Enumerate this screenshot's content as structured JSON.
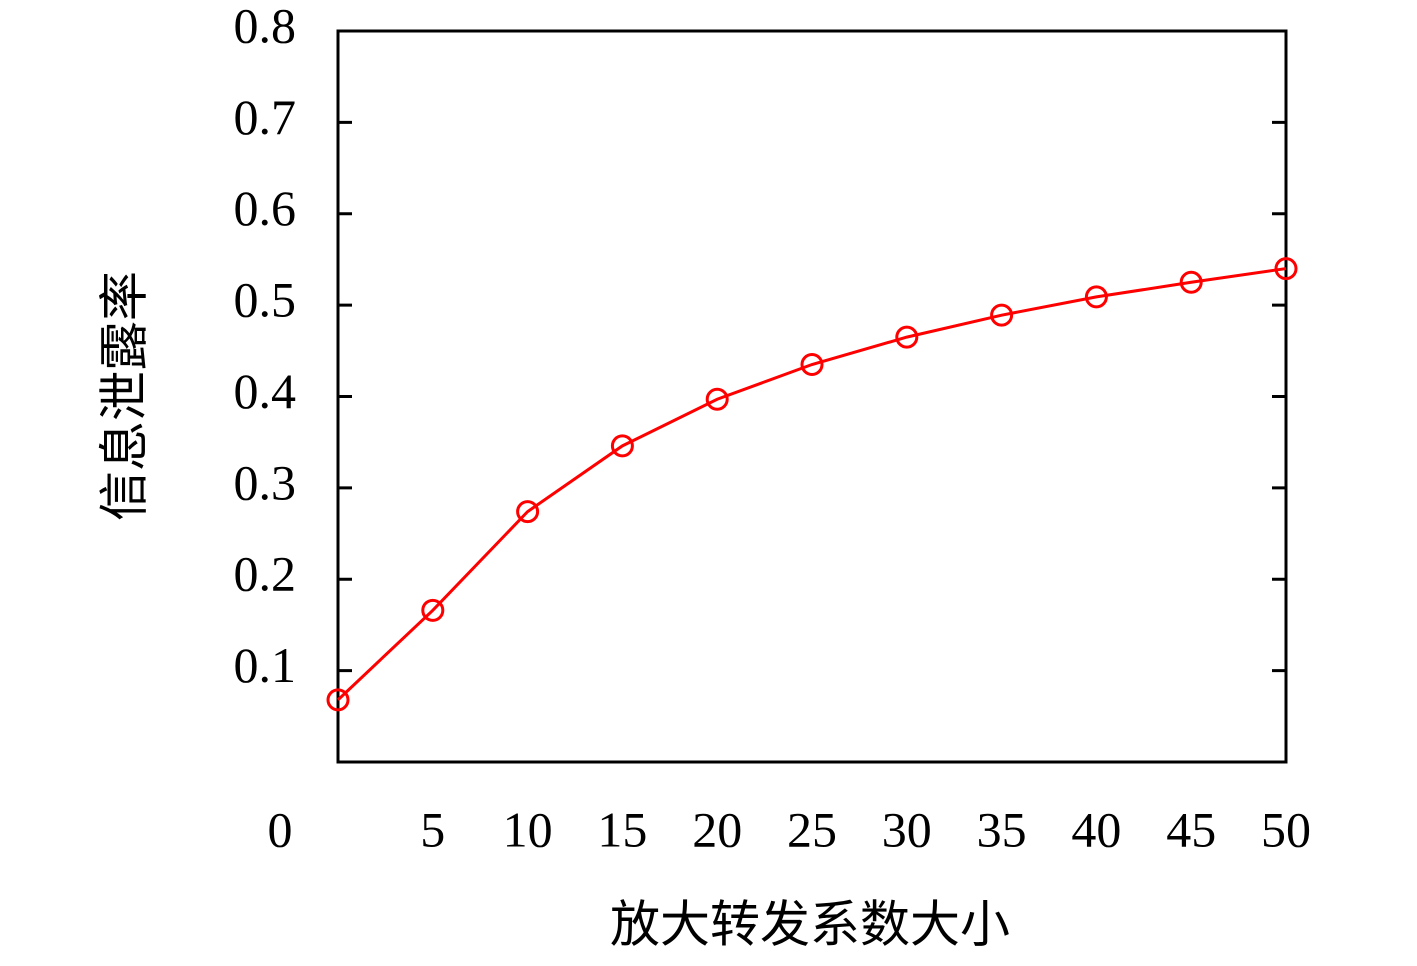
{
  "chart_data": {
    "type": "line",
    "x_label": "放大转发系数大小",
    "y_label": "信息泄露率",
    "x": [
      0,
      5,
      10,
      15,
      20,
      25,
      30,
      35,
      40,
      45,
      50
    ],
    "series": [
      {
        "name": "信息泄露率",
        "color": "#ff0000",
        "values": [
          0.068,
          0.166,
          0.274,
          0.346,
          0.397,
          0.435,
          0.465,
          0.489,
          0.509,
          0.525,
          0.54
        ]
      }
    ],
    "xlim": [
      0,
      50
    ],
    "xticks": [
      0,
      5,
      10,
      15,
      20,
      25,
      30,
      35,
      40,
      45,
      50
    ],
    "ylim": [
      0,
      0.8
    ],
    "yticks": [
      0.1,
      0.2,
      0.3,
      0.4,
      0.5,
      0.6,
      0.7,
      0.8
    ],
    "grid": false,
    "marker": "circle"
  }
}
